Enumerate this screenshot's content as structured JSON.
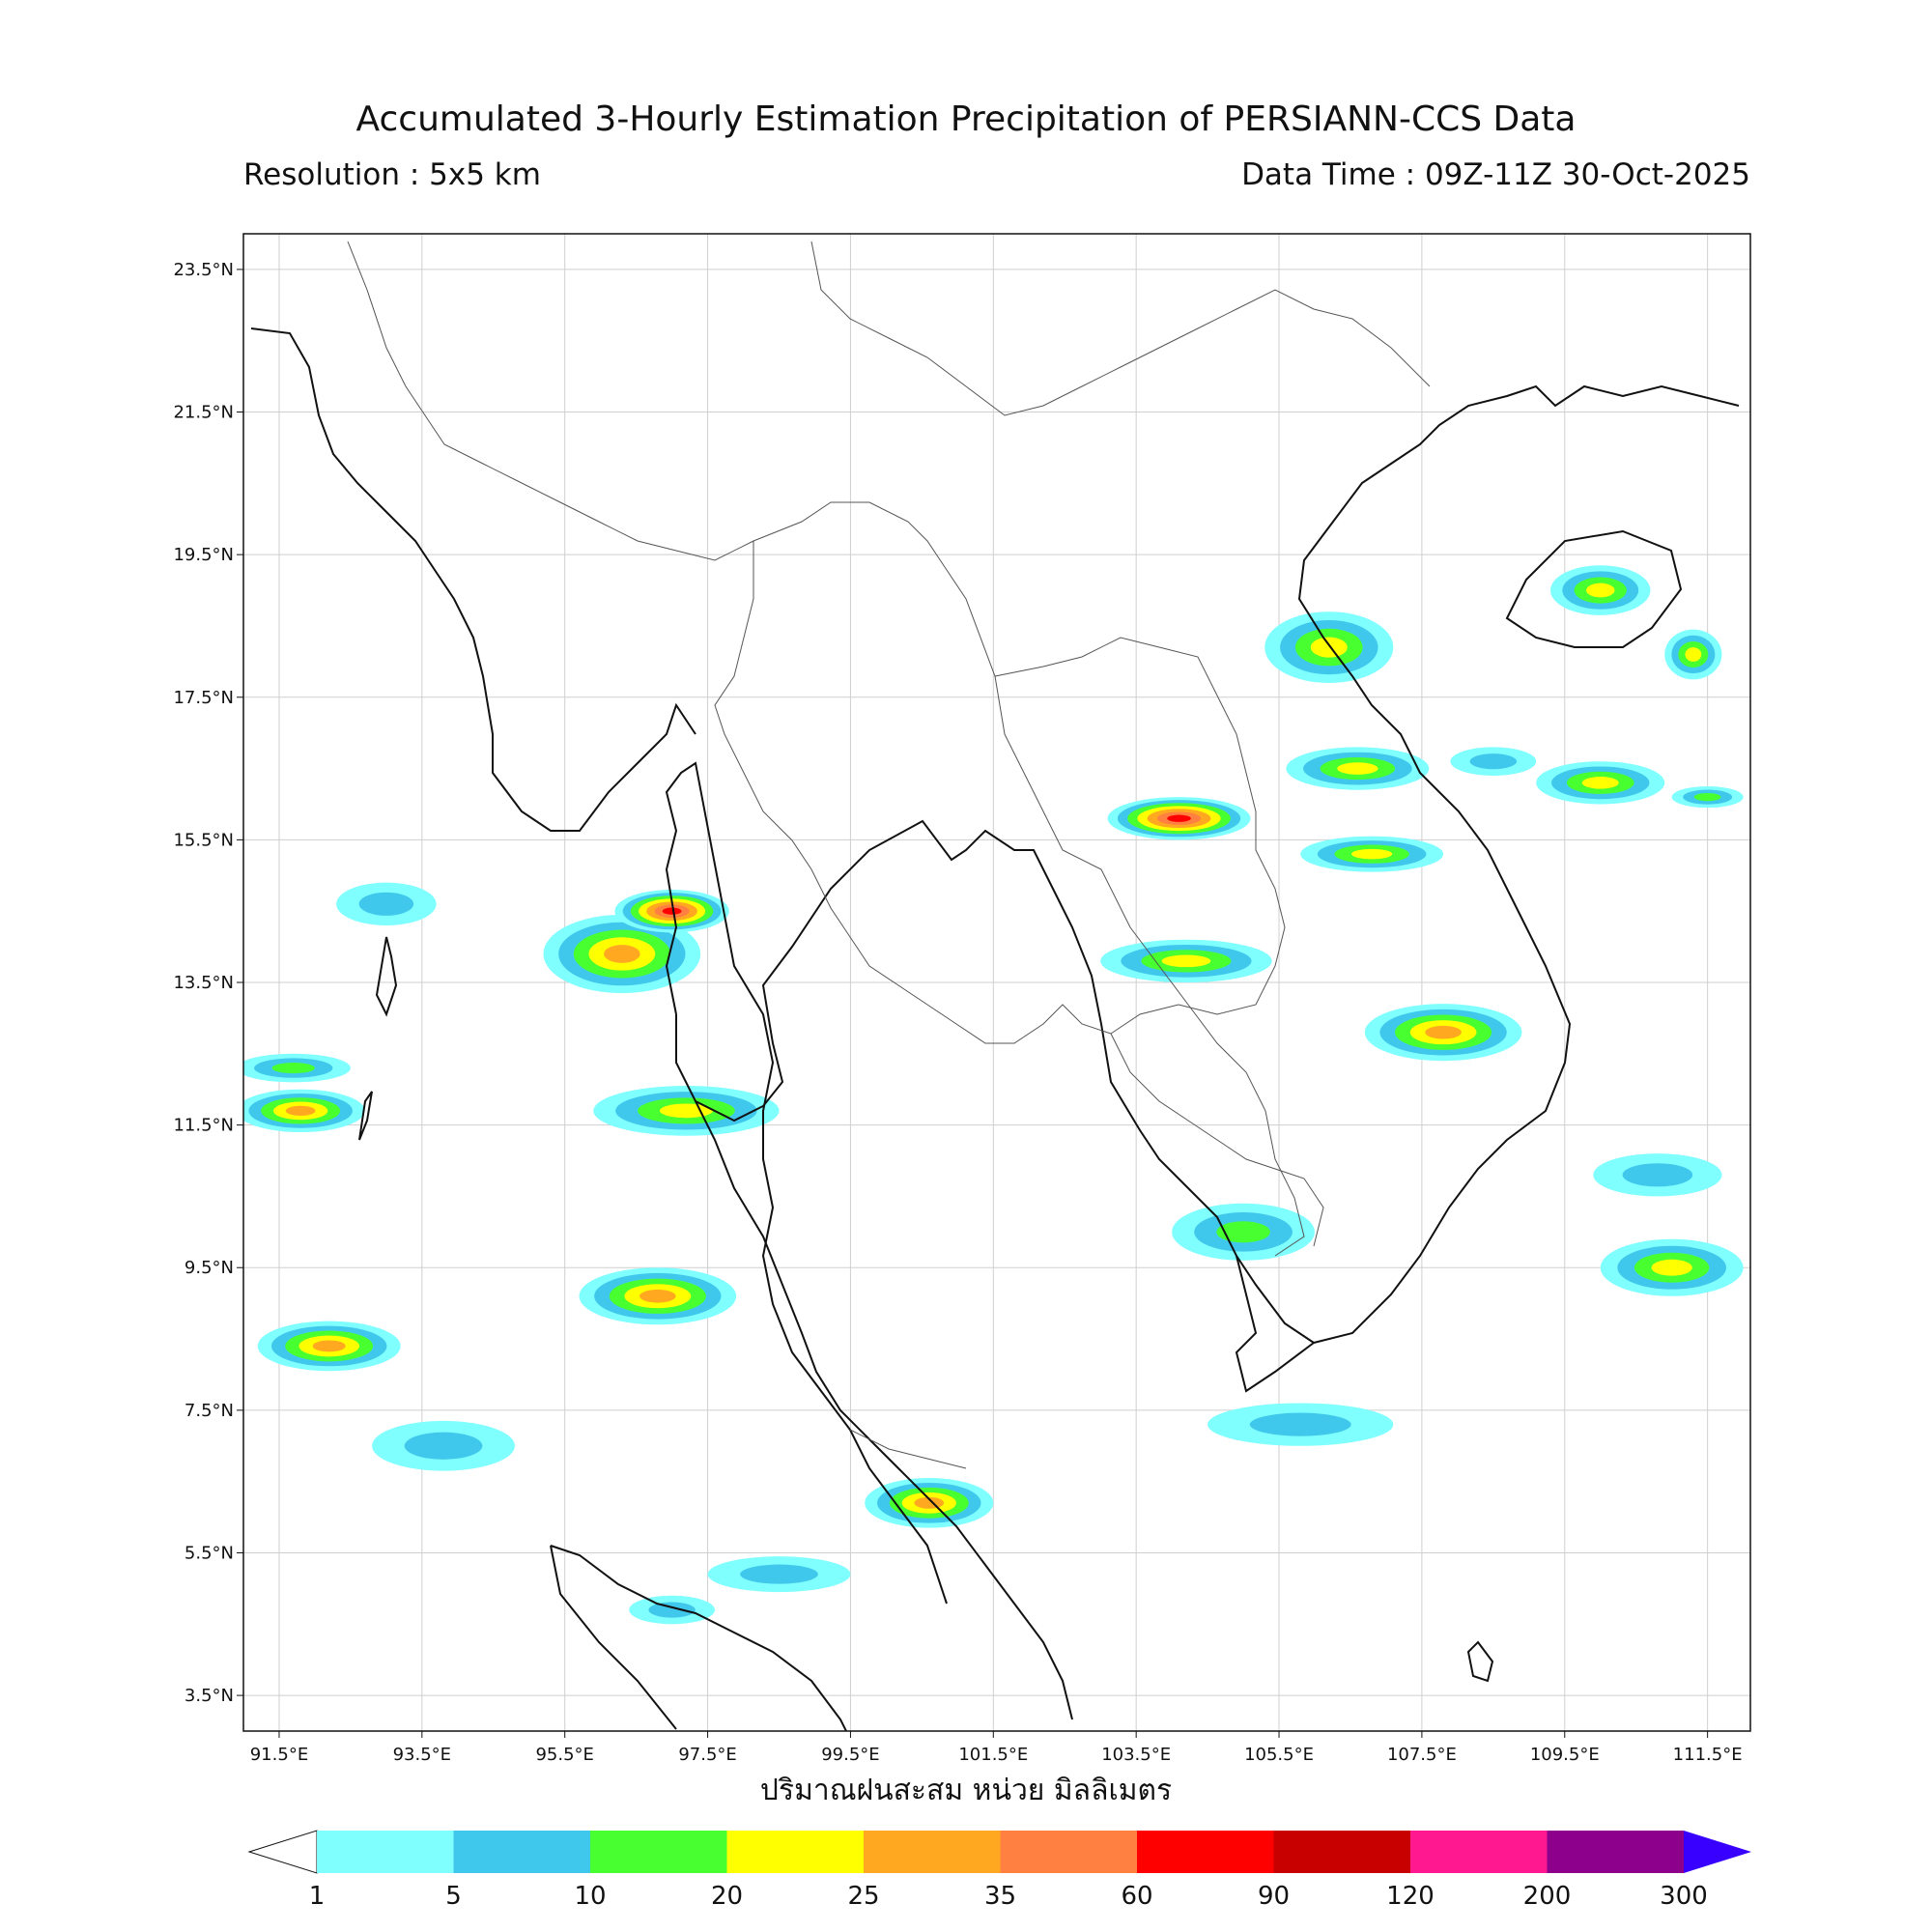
{
  "header": {
    "title": "Accumulated 3-Hourly Estimation Precipitation of PERSIANN-CCS Data",
    "resolution": "Resolution : 5x5 km",
    "data_time": "Data Time : 09Z-11Z 30-Oct-2025"
  },
  "axes": {
    "lon_ticks": [
      {
        "value": 91.5,
        "label": "91.5°E"
      },
      {
        "value": 93.5,
        "label": "93.5°E"
      },
      {
        "value": 95.5,
        "label": "95.5°E"
      },
      {
        "value": 97.5,
        "label": "97.5°E"
      },
      {
        "value": 99.5,
        "label": "99.5°E"
      },
      {
        "value": 101.5,
        "label": "101.5°E"
      },
      {
        "value": 103.5,
        "label": "103.5°E"
      },
      {
        "value": 105.5,
        "label": "105.5°E"
      },
      {
        "value": 107.5,
        "label": "107.5°E"
      },
      {
        "value": 109.5,
        "label": "109.5°E"
      },
      {
        "value": 111.5,
        "label": "111.5°E"
      }
    ],
    "lat_ticks": [
      {
        "value": 23.5,
        "label": "23.5°N"
      },
      {
        "value": 21.5,
        "label": "21.5°N"
      },
      {
        "value": 19.5,
        "label": "19.5°N"
      },
      {
        "value": 17.5,
        "label": "17.5°N"
      },
      {
        "value": 15.5,
        "label": "15.5°N"
      },
      {
        "value": 13.5,
        "label": "13.5°N"
      },
      {
        "value": 11.5,
        "label": "11.5°N"
      },
      {
        "value": 9.5,
        "label": "9.5°N"
      },
      {
        "value": 7.5,
        "label": "7.5°N"
      },
      {
        "value": 5.5,
        "label": "5.5°N"
      },
      {
        "value": 3.5,
        "label": "3.5°N"
      }
    ],
    "lon_range": [
      91,
      112.1
    ],
    "lat_range": [
      3,
      24
    ],
    "xlabel": "ปริมาณฝนสะสม หน่วย มิลลิเมตร"
  },
  "colorbar": {
    "ticks": [
      "1",
      "5",
      "10",
      "20",
      "25",
      "35",
      "60",
      "90",
      "120",
      "200",
      "300"
    ],
    "colors": [
      "#80ffff",
      "#40c8ec",
      "#48ff30",
      "#ffff00",
      "#ffa820",
      "#ff8040",
      "#ff0000",
      "#c80000",
      "#ff1890",
      "#8c008c"
    ],
    "under_color": "#ffffff",
    "over_color": "#3800ff"
  },
  "precip_cells": [
    {
      "lon": 96.3,
      "lat": 13.9,
      "rx": 1.1,
      "ry": 0.55,
      "level": 4
    },
    {
      "lon": 97.0,
      "lat": 14.5,
      "rx": 0.8,
      "ry": 0.3,
      "level": 6
    },
    {
      "lon": 93.0,
      "lat": 14.6,
      "rx": 0.7,
      "ry": 0.3,
      "level": 1
    },
    {
      "lon": 91.7,
      "lat": 12.3,
      "rx": 0.8,
      "ry": 0.2,
      "level": 2
    },
    {
      "lon": 91.8,
      "lat": 11.7,
      "rx": 0.9,
      "ry": 0.3,
      "level": 4
    },
    {
      "lon": 97.2,
      "lat": 11.7,
      "rx": 1.3,
      "ry": 0.35,
      "level": 3
    },
    {
      "lon": 96.8,
      "lat": 9.1,
      "rx": 1.1,
      "ry": 0.4,
      "level": 4
    },
    {
      "lon": 92.2,
      "lat": 8.4,
      "rx": 1.0,
      "ry": 0.35,
      "level": 4
    },
    {
      "lon": 93.8,
      "lat": 7.0,
      "rx": 1.0,
      "ry": 0.35,
      "level": 1
    },
    {
      "lon": 98.5,
      "lat": 5.2,
      "rx": 1.0,
      "ry": 0.25,
      "level": 1
    },
    {
      "lon": 97.0,
      "lat": 4.7,
      "rx": 0.6,
      "ry": 0.2,
      "level": 1
    },
    {
      "lon": 100.6,
      "lat": 6.2,
      "rx": 0.9,
      "ry": 0.35,
      "level": 4
    },
    {
      "lon": 104.1,
      "lat": 15.8,
      "rx": 1.0,
      "ry": 0.3,
      "level": 6
    },
    {
      "lon": 106.6,
      "lat": 16.5,
      "rx": 1.0,
      "ry": 0.3,
      "level": 3
    },
    {
      "lon": 106.2,
      "lat": 18.2,
      "rx": 0.9,
      "ry": 0.5,
      "level": 3
    },
    {
      "lon": 110.0,
      "lat": 16.3,
      "rx": 0.9,
      "ry": 0.3,
      "level": 3
    },
    {
      "lon": 106.8,
      "lat": 15.3,
      "rx": 1.0,
      "ry": 0.25,
      "level": 3
    },
    {
      "lon": 104.2,
      "lat": 13.8,
      "rx": 1.2,
      "ry": 0.3,
      "level": 3
    },
    {
      "lon": 107.8,
      "lat": 12.8,
      "rx": 1.1,
      "ry": 0.4,
      "level": 4
    },
    {
      "lon": 105.0,
      "lat": 10.0,
      "rx": 1.0,
      "ry": 0.4,
      "level": 2
    },
    {
      "lon": 111.0,
      "lat": 9.5,
      "rx": 1.0,
      "ry": 0.4,
      "level": 3
    },
    {
      "lon": 110.0,
      "lat": 19.0,
      "rx": 0.7,
      "ry": 0.35,
      "level": 3
    },
    {
      "lon": 111.3,
      "lat": 18.1,
      "rx": 0.4,
      "ry": 0.35,
      "level": 3
    },
    {
      "lon": 105.8,
      "lat": 7.3,
      "rx": 1.3,
      "ry": 0.3,
      "level": 1
    },
    {
      "lon": 111.5,
      "lat": 16.1,
      "rx": 0.5,
      "ry": 0.15,
      "level": 2
    },
    {
      "lon": 110.8,
      "lat": 10.8,
      "rx": 0.9,
      "ry": 0.3,
      "level": 1
    },
    {
      "lon": 108.5,
      "lat": 16.6,
      "rx": 0.6,
      "ry": 0.2,
      "level": 1
    }
  ]
}
